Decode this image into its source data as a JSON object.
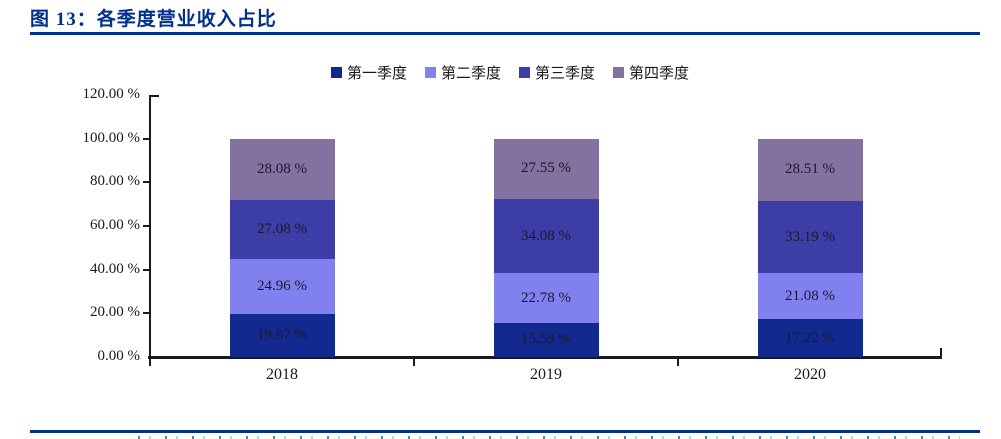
{
  "title": {
    "text": "图 13：各季度营业收入占比"
  },
  "colors": {
    "accent_navy": "#002F8C",
    "axis_line": "#1A1A1A",
    "text": "#1A1A1A"
  },
  "chart_data": {
    "type": "bar",
    "stacked": true,
    "title": "各季度营业收入占比",
    "categories": [
      "2018",
      "2019",
      "2020"
    ],
    "series": [
      {
        "name": "第一季度",
        "color": "#12298F",
        "values": [
          19.87,
          15.59,
          17.22
        ],
        "labels": [
          "19.87 %",
          "15.59 %",
          "17.22 %"
        ]
      },
      {
        "name": "第二季度",
        "color": "#8080EF",
        "values": [
          24.96,
          22.78,
          21.08
        ],
        "labels": [
          "24.96 %",
          "22.78 %",
          "21.08 %"
        ]
      },
      {
        "name": "第三季度",
        "color": "#3D3EA5",
        "values": [
          27.08,
          34.08,
          33.19
        ],
        "labels": [
          "27.08 %",
          "34.08 %",
          "33.19 %"
        ]
      },
      {
        "name": "第四季度",
        "color": "#83719F",
        "values": [
          28.08,
          27.55,
          28.51
        ],
        "labels": [
          "28.08 %",
          "27.55 %",
          "28.51 %"
        ]
      }
    ],
    "y_axis": {
      "min": 0,
      "max": 120,
      "step": 20,
      "tick_labels": [
        "0.00 %",
        "20.00 %",
        "40.00 %",
        "60.00 %",
        "80.00 %",
        "100.00 %",
        "120.00 %"
      ]
    },
    "xlabel": "",
    "ylabel": "",
    "legend_position": "top",
    "grid": false,
    "unit": "%"
  }
}
